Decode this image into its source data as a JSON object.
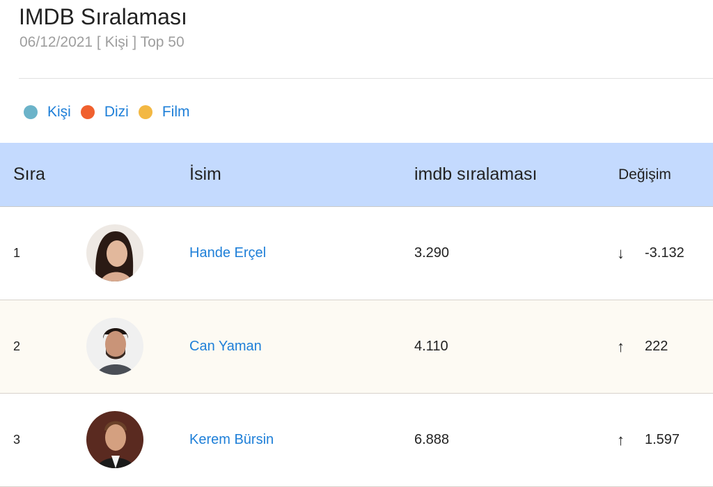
{
  "header": {
    "title": "IMDB Sıralaması",
    "subtitle": "06/12/2021 [ Kişi ] Top 50"
  },
  "legend": [
    {
      "label": "Kişi",
      "color": "#6bb3c9"
    },
    {
      "label": "Dizi",
      "color": "#f0602e"
    },
    {
      "label": "Film",
      "color": "#f3b843"
    }
  ],
  "table": {
    "columns": [
      "Sıra",
      "İsim",
      "imdb sıralaması",
      "Değişim"
    ],
    "rows": [
      {
        "rank": "1",
        "name": "Hande Erçel",
        "imdb": "3.290",
        "direction": "down",
        "arrow": "↓",
        "change": "-3.132"
      },
      {
        "rank": "2",
        "name": "Can Yaman",
        "imdb": "4.110",
        "direction": "up",
        "arrow": "↑",
        "change": "222"
      },
      {
        "rank": "3",
        "name": "Kerem Bürsin",
        "imdb": "6.888",
        "direction": "up",
        "arrow": "↑",
        "change": "1.597"
      }
    ]
  }
}
